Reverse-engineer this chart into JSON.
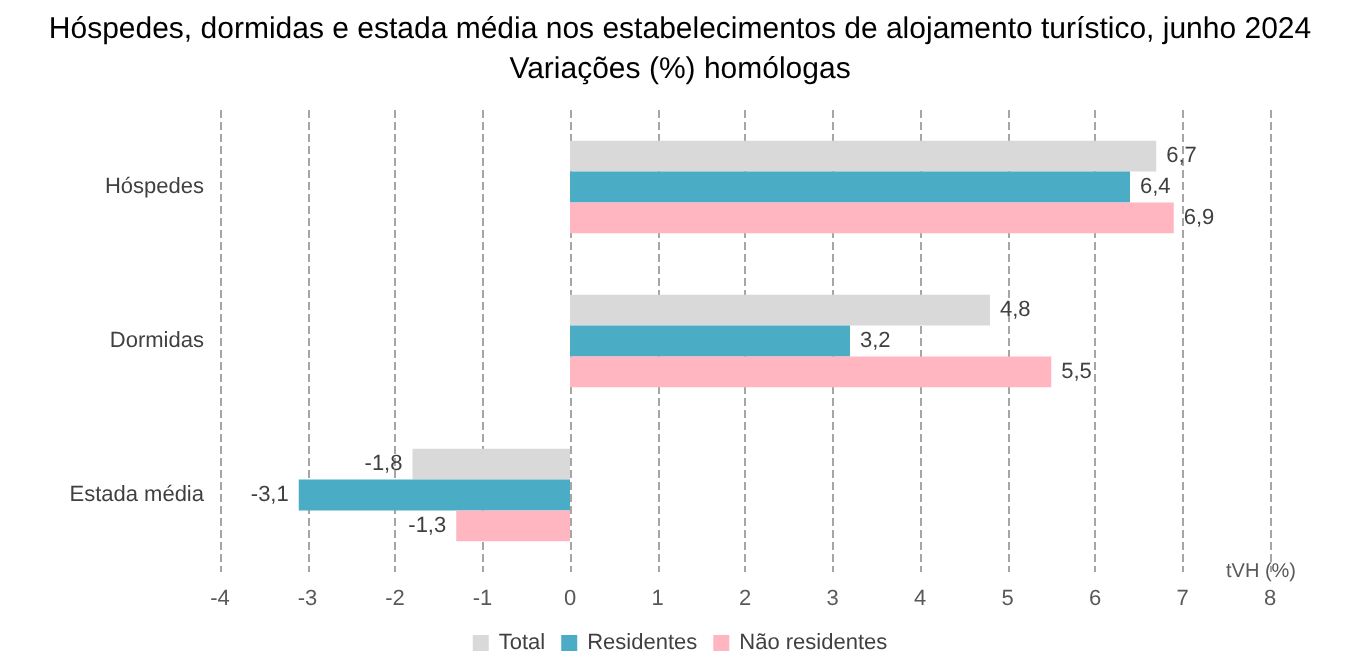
{
  "chart_data": {
    "type": "bar",
    "orientation": "horizontal",
    "title": "Hóspedes, dormidas e estada média nos estabelecimentos de alojamento turístico, junho 2024",
    "subtitle": "Variações (%) homólogas",
    "xlabel": "tVH (%)",
    "categories": [
      "Hóspedes",
      "Dormidas",
      "Estada média"
    ],
    "series": [
      {
        "name": "Total",
        "color": "#d9d9d9",
        "values": [
          6.7,
          4.8,
          -1.8
        ],
        "value_labels": [
          "6,7",
          "4,8",
          "-1,8"
        ]
      },
      {
        "name": "Residentes",
        "color": "#4bacc6",
        "values": [
          6.4,
          3.2,
          -3.1
        ],
        "value_labels": [
          "6,4",
          "3,2",
          "-3,1"
        ]
      },
      {
        "name": "Não residentes",
        "color": "#ffb6c1",
        "values": [
          6.9,
          5.5,
          -1.3
        ],
        "value_labels": [
          "6,9",
          "5,5",
          "-1,3"
        ]
      }
    ],
    "xlim": [
      -4,
      8
    ],
    "xticks": [
      -4,
      -3,
      -2,
      -1,
      0,
      1,
      2,
      3,
      4,
      5,
      6,
      7,
      8
    ],
    "grid": "x",
    "legend": "bottom"
  }
}
